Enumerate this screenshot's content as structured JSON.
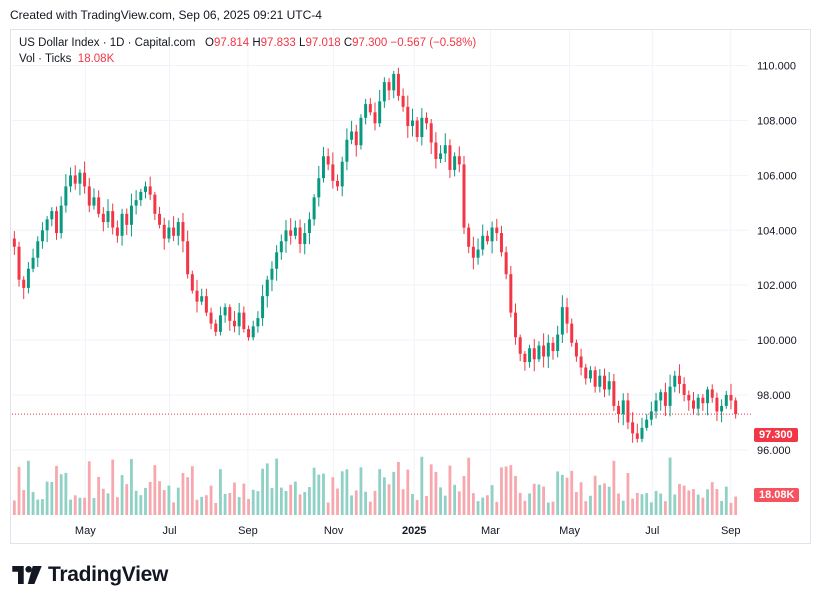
{
  "header": {
    "created_text": "Created with TradingView.com, Sep 06, 2025 09:21 UTC-4"
  },
  "legend": {
    "symbol": "US Dollar Index · 1D · Capital.com",
    "o_label": "O",
    "o_value": "97.814",
    "h_label": "H",
    "h_value": "97.833",
    "l_label": "L",
    "l_value": "97.018",
    "c_label": "C",
    "c_value": "97.300",
    "change": "−0.567 (−0.58%)",
    "vol_label": "Vol · Ticks",
    "vol_value": "18.08K"
  },
  "price_label": "97.300",
  "volume_label": "18.08K",
  "brand": {
    "name": "TradingView"
  },
  "colors": {
    "up": "#089981",
    "down": "#f23645",
    "up_vol": "#8fd1c5",
    "down_vol": "#f7a8ae",
    "grid": "#f0f3fa"
  },
  "chart_data": {
    "type": "candlestick",
    "title": "US Dollar Index · 1D · Capital.com",
    "y_ticks": [
      "110.000",
      "108.000",
      "106.000",
      "104.000",
      "102.000",
      "100.000",
      "98.000",
      "96.000"
    ],
    "y_range": [
      94.9,
      111.3
    ],
    "x_ticks": [
      "May",
      "Jul",
      "Sep",
      "Nov",
      "2025",
      "Mar",
      "May",
      "Jul",
      "Sep"
    ],
    "last_close": 97.3,
    "series_close": [
      103.4,
      102.2,
      101.9,
      102.6,
      103.0,
      103.6,
      104.0,
      104.4,
      104.7,
      103.9,
      104.9,
      105.6,
      106.0,
      105.7,
      106.1,
      105.6,
      104.9,
      105.2,
      104.6,
      104.3,
      104.7,
      104.1,
      103.8,
      104.6,
      104.2,
      104.9,
      105.1,
      105.4,
      105.6,
      105.3,
      104.6,
      104.2,
      103.7,
      104.1,
      103.8,
      104.3,
      103.6,
      102.4,
      101.8,
      101.4,
      101.6,
      101.0,
      100.6,
      100.3,
      100.9,
      101.2,
      100.7,
      100.5,
      101.0,
      100.4,
      100.1,
      100.5,
      100.8,
      101.6,
      102.2,
      102.6,
      103.2,
      103.6,
      104.0,
      103.8,
      104.1,
      103.5,
      103.9,
      104.4,
      105.2,
      105.9,
      106.7,
      106.4,
      105.8,
      105.6,
      106.5,
      107.3,
      107.6,
      107.1,
      108.1,
      108.6,
      108.3,
      107.9,
      108.7,
      109.4,
      109.1,
      109.7,
      108.9,
      108.5,
      107.8,
      108.0,
      107.4,
      108.1,
      107.9,
      107.2,
      106.6,
      106.8,
      107.1,
      106.2,
      106.7,
      106.4,
      104.1,
      103.4,
      103.0,
      103.3,
      103.8,
      103.6,
      104.1,
      103.9,
      103.2,
      102.4,
      101.0,
      100.1,
      99.5,
      99.2,
      99.7,
      99.3,
      99.8,
      99.4,
      99.9,
      99.6,
      100.2,
      101.2,
      100.6,
      99.9,
      99.4,
      99.0,
      98.6,
      98.9,
      98.3,
      98.7,
      98.2,
      98.5,
      97.6,
      97.3,
      97.8,
      97.0,
      96.6,
      96.4,
      96.8,
      97.1,
      97.4,
      97.8,
      98.1,
      97.6,
      98.3,
      98.7,
      98.4,
      98.0,
      97.8,
      97.5,
      97.9,
      97.7,
      98.2,
      97.9,
      97.4,
      97.6,
      98.0,
      97.8,
      97.3
    ]
  }
}
